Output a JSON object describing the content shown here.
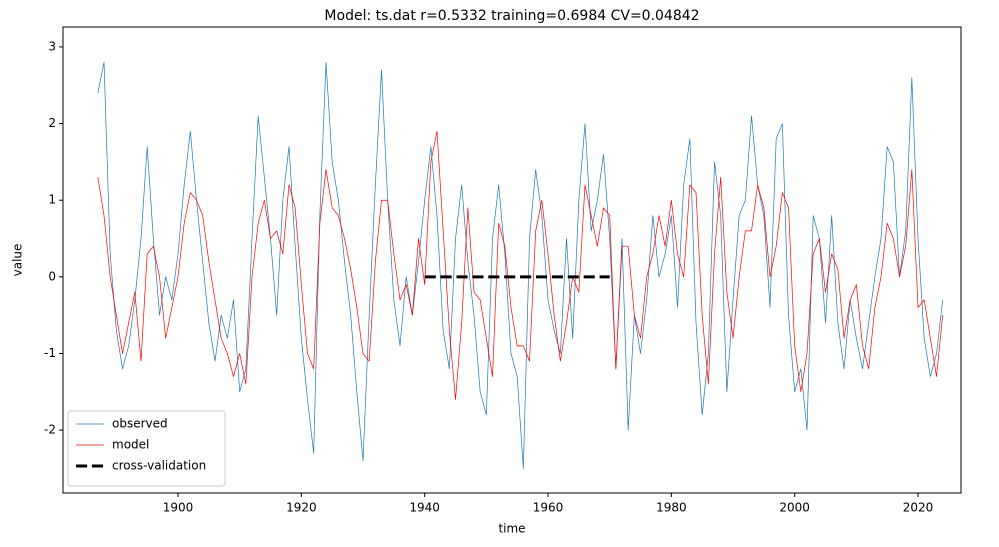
{
  "chart_data": {
    "type": "line",
    "title": "Model: ts.dat  r=0.5332  training=0.6984  CV=0.04842",
    "xlabel": "time",
    "ylabel": "value",
    "x": [
      1887,
      1888,
      1889,
      1890,
      1891,
      1892,
      1893,
      1894,
      1895,
      1896,
      1897,
      1898,
      1899,
      1900,
      1901,
      1902,
      1903,
      1904,
      1905,
      1906,
      1907,
      1908,
      1909,
      1910,
      1911,
      1912,
      1913,
      1914,
      1915,
      1916,
      1917,
      1918,
      1919,
      1920,
      1921,
      1922,
      1923,
      1924,
      1925,
      1926,
      1927,
      1928,
      1929,
      1930,
      1931,
      1932,
      1933,
      1934,
      1935,
      1936,
      1937,
      1938,
      1939,
      1940,
      1941,
      1942,
      1943,
      1944,
      1945,
      1946,
      1947,
      1948,
      1949,
      1950,
      1951,
      1952,
      1953,
      1954,
      1955,
      1956,
      1957,
      1958,
      1959,
      1960,
      1961,
      1962,
      1963,
      1964,
      1965,
      1966,
      1967,
      1968,
      1969,
      1970,
      1971,
      1972,
      1973,
      1974,
      1975,
      1976,
      1977,
      1978,
      1979,
      1980,
      1981,
      1982,
      1983,
      1984,
      1985,
      1986,
      1987,
      1988,
      1989,
      1990,
      1991,
      1992,
      1993,
      1994,
      1995,
      1996,
      1997,
      1998,
      1999,
      2000,
      2001,
      2002,
      2003,
      2004,
      2005,
      2006,
      2007,
      2008,
      2009,
      2010,
      2011,
      2012,
      2013,
      2014,
      2015,
      2016,
      2017,
      2018,
      2019,
      2020,
      2021,
      2022,
      2023,
      2024
    ],
    "series": [
      {
        "name": "observed",
        "color": "#1f77b4",
        "linewidth": 0.7,
        "linestyle": "solid",
        "values": [
          2.4,
          2.8,
          0.3,
          -0.7,
          -1.2,
          -0.9,
          -0.3,
          0.5,
          1.7,
          0.5,
          -0.5,
          0.0,
          -0.3,
          0.3,
          1.2,
          1.9,
          1.0,
          0.2,
          -0.6,
          -1.1,
          -0.5,
          -0.8,
          -0.3,
          -1.5,
          -1.2,
          0.5,
          2.1,
          1.3,
          0.5,
          -0.5,
          1.0,
          1.7,
          0.4,
          -0.8,
          -1.6,
          -2.3,
          0.8,
          2.8,
          1.5,
          1.0,
          0.2,
          -0.5,
          -1.5,
          -2.4,
          -0.5,
          1.2,
          2.7,
          1.0,
          -0.3,
          -0.9,
          0.0,
          -0.5,
          0.2,
          1.0,
          1.7,
          0.8,
          -0.7,
          -1.2,
          0.5,
          1.2,
          0.2,
          -0.5,
          -1.5,
          -1.8,
          0.5,
          1.2,
          0.3,
          -1.0,
          -1.3,
          -2.5,
          0.5,
          1.4,
          0.8,
          -0.3,
          -0.7,
          -1.0,
          0.5,
          -0.8,
          1.0,
          2.0,
          0.6,
          1.0,
          1.6,
          0.5,
          -1.2,
          0.5,
          -2.0,
          -0.5,
          -1.0,
          -0.3,
          0.8,
          0.0,
          0.3,
          0.8,
          -0.4,
          1.2,
          1.8,
          -0.6,
          -1.8,
          -1.0,
          1.5,
          0.8,
          -1.5,
          -0.3,
          0.8,
          1.0,
          2.1,
          1.2,
          0.8,
          -0.4,
          1.8,
          2.0,
          -0.5,
          -1.5,
          -1.2,
          -2.0,
          0.8,
          0.5,
          -0.6,
          0.8,
          -0.6,
          -1.2,
          -0.3,
          -0.8,
          -1.2,
          -0.6,
          0.0,
          0.5,
          1.7,
          1.5,
          0.0,
          0.6,
          2.6,
          0.5,
          -0.8,
          -1.3,
          -1.0,
          -0.3
        ]
      },
      {
        "name": "model",
        "color": "#ff0000",
        "linewidth": 0.7,
        "linestyle": "solid",
        "values": [
          1.3,
          0.8,
          0.0,
          -0.5,
          -1.0,
          -0.6,
          -0.2,
          -1.1,
          0.3,
          0.4,
          0.0,
          -0.8,
          -0.4,
          0.0,
          0.7,
          1.1,
          1.0,
          0.8,
          0.2,
          -0.3,
          -0.8,
          -1.0,
          -1.3,
          -1.0,
          -1.4,
          0.0,
          0.7,
          1.0,
          0.5,
          0.6,
          0.3,
          1.2,
          0.9,
          -0.1,
          -1.0,
          -1.2,
          0.7,
          1.4,
          0.9,
          0.8,
          0.5,
          0.1,
          -0.4,
          -1.0,
          -1.1,
          0.2,
          1.0,
          1.0,
          0.3,
          -0.3,
          -0.1,
          -0.5,
          0.5,
          -0.1,
          1.5,
          1.9,
          0.6,
          -0.7,
          -1.6,
          -0.6,
          0.9,
          -0.2,
          -0.3,
          -0.8,
          -1.3,
          0.7,
          0.4,
          -0.4,
          -0.9,
          -0.9,
          -1.1,
          0.6,
          1.0,
          0.3,
          -0.5,
          -1.1,
          -0.6,
          0.0,
          -0.2,
          1.2,
          0.8,
          0.4,
          0.9,
          0.8,
          -1.2,
          0.4,
          0.4,
          -0.5,
          -0.8,
          0.0,
          0.3,
          0.8,
          0.4,
          1.0,
          0.3,
          0.0,
          1.2,
          1.1,
          -0.5,
          -1.4,
          0.3,
          1.3,
          -0.2,
          -0.8,
          0.0,
          0.6,
          0.6,
          1.2,
          0.9,
          0.0,
          0.4,
          1.1,
          0.9,
          -0.9,
          -1.5,
          -1.0,
          0.3,
          0.5,
          -0.2,
          0.3,
          0.1,
          -0.8,
          -0.3,
          -0.1,
          -0.9,
          -1.2,
          -0.4,
          0.0,
          0.7,
          0.5,
          0.0,
          0.4,
          1.4,
          -0.4,
          -0.3,
          -0.8,
          -1.3,
          -0.5
        ]
      },
      {
        "name": "cross-validation",
        "color": "#000000",
        "linewidth": 3,
        "linestyle": "dashed",
        "x": [
          1940,
          1970
        ],
        "values": [
          0,
          0
        ]
      }
    ],
    "xlim": [
      1881.35,
      2026.97
    ],
    "ylim": [
      -2.82,
      3.26
    ],
    "xticks": [
      1900,
      1920,
      1940,
      1960,
      1980,
      2000,
      2020
    ],
    "yticks": [
      -2,
      -1,
      0,
      1,
      2,
      3
    ],
    "grid": false,
    "legend": "lower left"
  }
}
